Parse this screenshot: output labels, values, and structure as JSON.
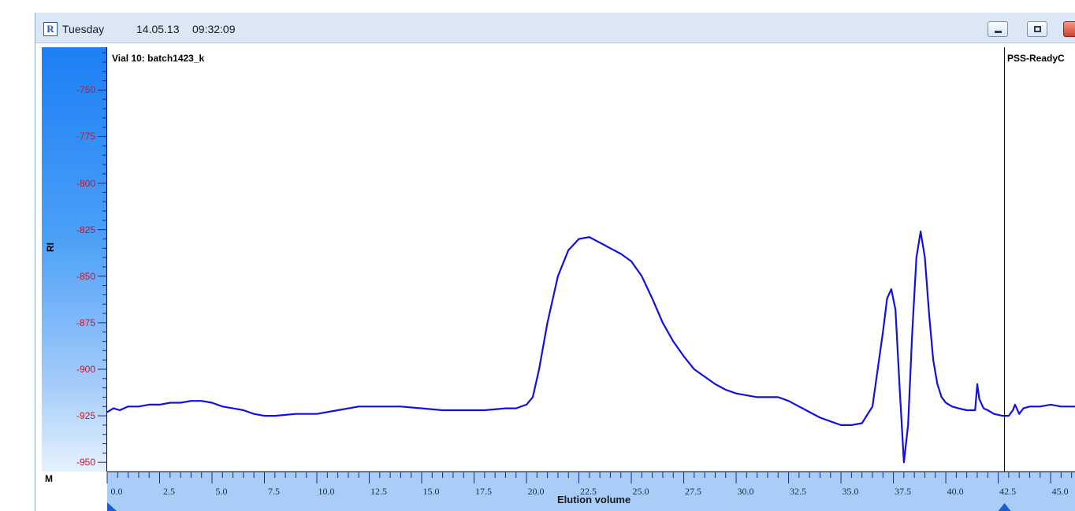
{
  "window": {
    "title": "Tuesday",
    "date": "14.05.13",
    "time": "09:32:09",
    "app_icon_letter": "R"
  },
  "plot": {
    "vial_label": "Vial  10: batch1423_k",
    "right_label": "PSS-ReadyC",
    "m_label": "M"
  },
  "colors": {
    "trace": "#1010e0",
    "tick_labels_y": "#d0122a",
    "axis_band_top": "#1b7ff5",
    "axis_band_bottom": "#e6f1fe"
  },
  "chart_data": {
    "type": "line",
    "title": "",
    "xlabel": "Elution volume",
    "ylabel": "RI",
    "xlim": [
      0,
      46.2
    ],
    "ylim": [
      -955,
      -727
    ],
    "x_ticks": [
      "0.0",
      "2.5",
      "5.0",
      "7.5",
      "10.0",
      "12.5",
      "15.0",
      "17.5",
      "20.0",
      "22.5",
      "25.0",
      "27.5",
      "30.0",
      "32.5",
      "35.0",
      "37.5",
      "40.0",
      "42.5",
      "45.0"
    ],
    "y_ticks": [
      "-750",
      "-775",
      "-800",
      "-825",
      "-850",
      "-875",
      "-900",
      "-925",
      "-950"
    ],
    "marker_x": 42.8,
    "series": [
      {
        "x": [
          0.0,
          0.3,
          0.6,
          1.0,
          1.5,
          2.0,
          2.5,
          3.0,
          3.5,
          4.0,
          4.5,
          5.0,
          5.5,
          6.0,
          6.5,
          7.0,
          7.5,
          8.0,
          9.0,
          10.0,
          11.0,
          12.0,
          12.5,
          13.0,
          14.0,
          15.0,
          16.0,
          17.0,
          18.0,
          19.0,
          19.5,
          20.0,
          20.3,
          20.6,
          21.0,
          21.5,
          22.0,
          22.5,
          23.0,
          23.5,
          24.0,
          24.5,
          25.0,
          25.5,
          26.0,
          26.5,
          27.0,
          27.5,
          28.0,
          28.5,
          29.0,
          29.5,
          30.0,
          30.5,
          31.0,
          31.5,
          32.0,
          32.5,
          33.0,
          33.5,
          34.0,
          34.5,
          35.0,
          35.5,
          36.0,
          36.5,
          37.0,
          37.2,
          37.4,
          37.6,
          37.8,
          38.0,
          38.2,
          38.4,
          38.6,
          38.8,
          39.0,
          39.2,
          39.4,
          39.6,
          39.8,
          40.0,
          40.3,
          40.6,
          41.0,
          41.2,
          41.4,
          41.5,
          41.6,
          41.8,
          42.0,
          42.3,
          42.7,
          43.0,
          43.2,
          43.3,
          43.5,
          43.7,
          44.0,
          44.5,
          45.0,
          45.5,
          46.2
        ],
        "y": [
          -923,
          -921,
          -922,
          -920,
          -920,
          -919,
          -919,
          -918,
          -918,
          -917,
          -917,
          -918,
          -920,
          -921,
          -922,
          -924,
          -925,
          -925,
          -924,
          -924,
          -922,
          -920,
          -920,
          -920,
          -920,
          -921,
          -922,
          -922,
          -922,
          -921,
          -921,
          -919,
          -915,
          -900,
          -875,
          -850,
          -836,
          -830,
          -829,
          -832,
          -835,
          -838,
          -842,
          -850,
          -862,
          -875,
          -885,
          -893,
          -900,
          -904,
          -908,
          -911,
          -913,
          -914,
          -915,
          -915,
          -915,
          -917,
          -920,
          -923,
          -926,
          -928,
          -930,
          -930,
          -929,
          -920,
          -880,
          -862,
          -857,
          -868,
          -910,
          -950,
          -930,
          -880,
          -840,
          -826,
          -840,
          -870,
          -895,
          -908,
          -915,
          -918,
          -920,
          -921,
          -922,
          -922,
          -922,
          -908,
          -916,
          -921,
          -922,
          -924,
          -925,
          -925,
          -922,
          -919,
          -924,
          -921,
          -920,
          -920,
          -919,
          -920,
          -920
        ]
      }
    ]
  }
}
